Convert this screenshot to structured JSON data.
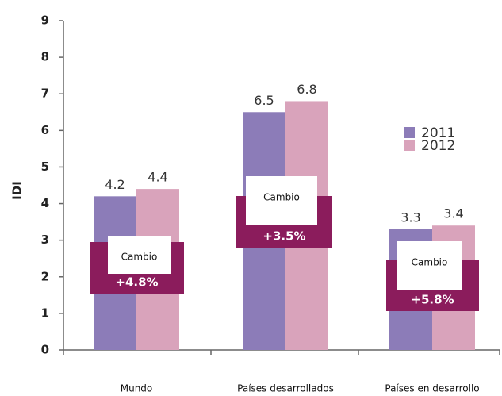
{
  "chart_data": {
    "type": "bar",
    "y_label": "IDI",
    "categories": [
      "Mundo",
      "Países desarrollados",
      "Países en desarrollo"
    ],
    "series": [
      {
        "name": "2011",
        "color": "#8c7cb8",
        "values": [
          4.2,
          6.5,
          3.3
        ]
      },
      {
        "name": "2012",
        "color": "#d9a3bb",
        "values": [
          4.4,
          6.8,
          3.4
        ]
      }
    ],
    "ylim": [
      0,
      9
    ],
    "yticks": [
      0,
      1,
      2,
      3,
      4,
      5,
      6,
      7,
      8,
      9
    ],
    "legend": "right",
    "annotations": [
      {
        "title": "Cambio",
        "text": "+4.8%"
      },
      {
        "title": "Cambio",
        "text": "+3.5%"
      },
      {
        "title": "Cambio",
        "text": "+5.8%"
      }
    ],
    "annotation_color": "#8b1c5c"
  }
}
